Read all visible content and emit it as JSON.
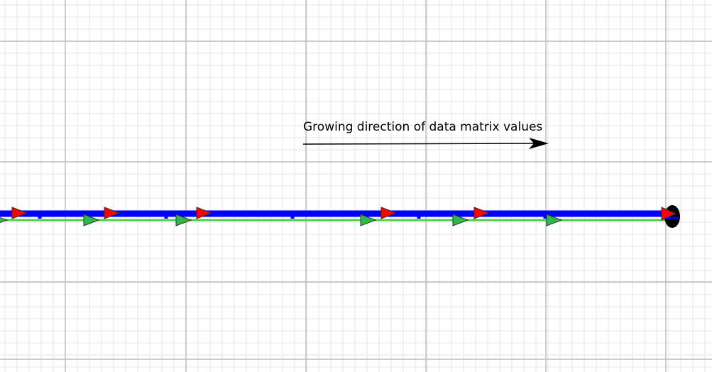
{
  "annotation": {
    "text": "Growing direction of data matrix values"
  },
  "colors": {
    "background": "#ffffff",
    "grid_minor": "#e6e6e6",
    "grid_major": "#bdbdbd",
    "blue_track": "#0000ff",
    "green_track": "#4fcf4f",
    "red_marker": "#ff0000",
    "green_marker": "#2fb84a",
    "marker_outline": "#333333",
    "end_node": "#000000",
    "arrow": "#000000"
  },
  "icons": {
    "red_marker": "red-triangle-marker-icon",
    "green_marker": "green-triangle-marker-icon",
    "end_node": "end-node-icon",
    "direction_arrow": "direction-arrow-icon"
  }
}
